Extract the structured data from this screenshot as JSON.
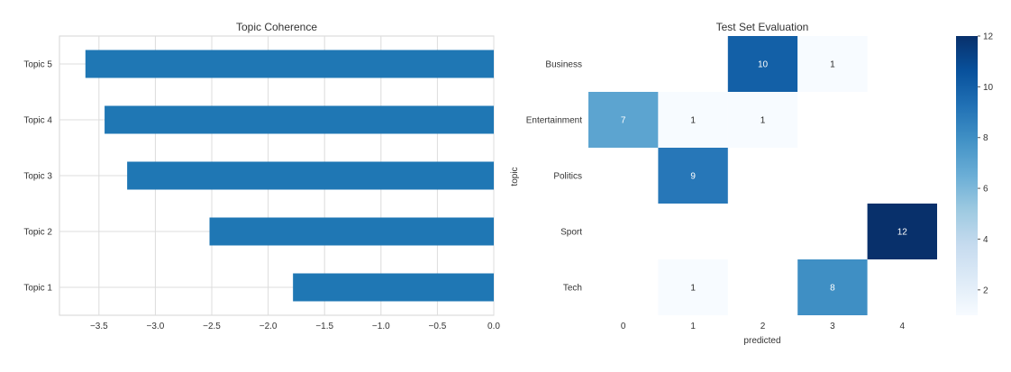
{
  "chart_data": [
    {
      "type": "bar",
      "orientation": "horizontal",
      "title": "Topic Coherence",
      "categories": [
        "Topic 1",
        "Topic 2",
        "Topic 3",
        "Topic 4",
        "Topic 5"
      ],
      "values": [
        -1.78,
        -2.52,
        -3.25,
        -3.45,
        -3.62
      ],
      "xlabel": "",
      "ylabel": "",
      "xlim": [
        -3.85,
        0.0
      ],
      "xticks": [
        "−3.5",
        "−3.0",
        "−2.5",
        "−2.0",
        "−1.5",
        "−1.0",
        "−0.5",
        "0.0"
      ],
      "xtick_values": [
        -3.5,
        -3.0,
        -2.5,
        -2.0,
        -1.5,
        -1.0,
        -0.5,
        0.0
      ],
      "grid": true,
      "bar_color": "#1f77b4"
    },
    {
      "type": "heatmap",
      "title": "Test Set Evaluation",
      "rows": [
        "Business",
        "Entertainment",
        "Politics",
        "Sport",
        "Tech"
      ],
      "columns": [
        "0",
        "1",
        "2",
        "3",
        "4"
      ],
      "values": [
        [
          null,
          null,
          10,
          1,
          null
        ],
        [
          7,
          1,
          1,
          null,
          null
        ],
        [
          null,
          9,
          null,
          null,
          null
        ],
        [
          null,
          null,
          null,
          null,
          12
        ],
        [
          null,
          1,
          null,
          8,
          null
        ]
      ],
      "xlabel": "predicted",
      "ylabel": "topic",
      "colormap": "Blues",
      "colorbar": {
        "min": 1,
        "max": 12,
        "ticks": [
          "2",
          "4",
          "6",
          "8",
          "10",
          "12"
        ],
        "tick_values": [
          2,
          4,
          6,
          8,
          10,
          12
        ]
      }
    }
  ]
}
